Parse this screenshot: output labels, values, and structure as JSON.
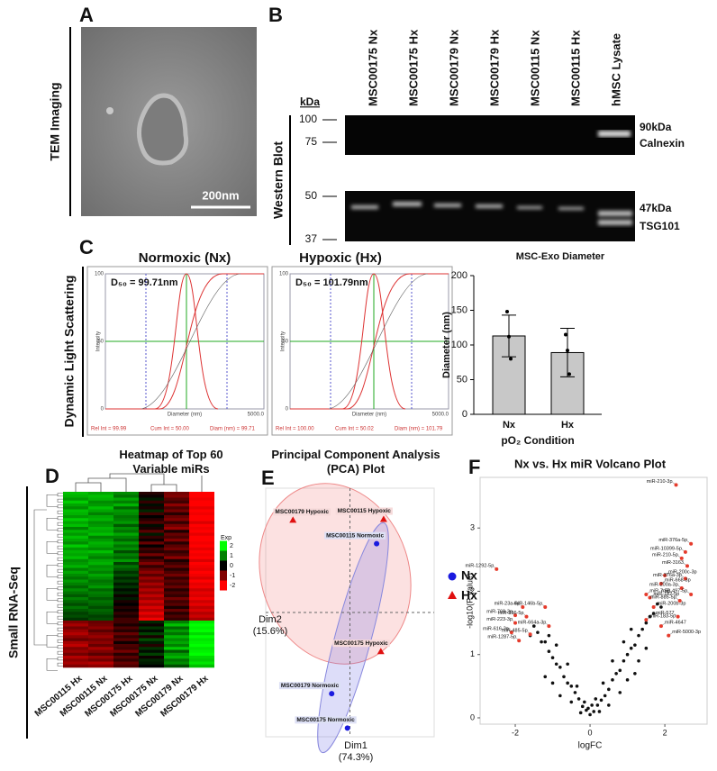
{
  "panel_labels": [
    "A",
    "B",
    "C",
    "D",
    "E",
    "F"
  ],
  "tem": {
    "side_label": "TEM Imaging",
    "scale_bar": "200nm"
  },
  "western": {
    "side_label": "Western Blot",
    "kda_label": "kDa",
    "lanes": [
      "MSC00175 Nx",
      "MSC00175 Hx",
      "MSC00179 Nx",
      "MSC00179 Hx",
      "MSC00115 Nx",
      "MSC00115 Hx",
      "hMSC Lysate"
    ],
    "markers_top": [
      100,
      75
    ],
    "markers_bottom": [
      50,
      37
    ],
    "right_top": [
      "90kDa",
      "Calnexin"
    ],
    "right_bottom": [
      "47kDa",
      "TSG101"
    ]
  },
  "dls": {
    "side_label": "Dynamic Light Scattering",
    "axis": {
      "yticks": [
        "100",
        "50",
        "0"
      ],
      "ylabel": "Intensity",
      "xlabel": "Diameter (nm)",
      "xmax": "5000.0"
    },
    "panels": [
      {
        "title": "Normoxic (Nx)",
        "d50": "D₅₀ = 99.71nm",
        "stats": [
          "Rel Int = 99.99",
          "Cum Int = 50.00",
          "Diam (nm) = 99.71"
        ]
      },
      {
        "title": "Hypoxic (Hx)",
        "d50": "D₅₀ = 101.79nm",
        "stats": [
          "Rel Int = 100.00",
          "Cum Int = 50.02",
          "Diam (nm) = 101.79"
        ]
      }
    ]
  },
  "rnaseq_side_label": "Small RNA-Seq",
  "chart_data": [
    {
      "type": "bar",
      "title": "MSC-Exo Diameter",
      "ylabel": "Diameter (nm)",
      "xlabel": "pO₂ Condition",
      "categories": [
        "Nx",
        "Hx"
      ],
      "values": [
        113,
        89
      ],
      "errors": [
        30,
        35
      ],
      "points": [
        [
          148,
          112,
          80
        ],
        [
          115,
          92,
          58
        ]
      ],
      "color": "#c8c8c8",
      "ylim": [
        0,
        200
      ],
      "yticks": [
        0,
        50,
        100,
        150,
        200
      ]
    },
    {
      "type": "heatmap",
      "title": "Heatmap of Top 60 Variable miRs",
      "legend_title": "Exp",
      "columns": [
        "MSC00115 Hx",
        "MSC00115 Nx",
        "MSC00175 Hx",
        "MSC00175 Nx",
        "MSC00179 Nx",
        "MSC00179 Hx"
      ],
      "zlim": [
        -2,
        2
      ],
      "zticks": [
        2,
        1,
        0,
        -1,
        -2
      ],
      "values": [
        [
          1.5,
          1.3,
          1.1,
          -0.3,
          -0.9,
          -2
        ],
        [
          1.4,
          1.5,
          0.9,
          -0.1,
          -1.0,
          -2
        ],
        [
          1.2,
          1.4,
          1.3,
          0.2,
          -0.7,
          -1.9
        ],
        [
          1.6,
          1.1,
          1.0,
          -0.4,
          -0.5,
          -2
        ],
        [
          1.3,
          1.2,
          1.4,
          0.1,
          -1.1,
          -2
        ],
        [
          1.1,
          1.5,
          0.8,
          -0.2,
          -0.6,
          -1.8
        ],
        [
          1.5,
          1.3,
          1.2,
          0.3,
          -0.9,
          -2
        ],
        [
          1.4,
          1.0,
          1.1,
          -0.5,
          -0.3,
          -1.9
        ],
        [
          1.2,
          1.3,
          0.9,
          0.0,
          -0.8,
          -2
        ],
        [
          1.6,
          1.4,
          1.0,
          -0.3,
          -1.0,
          -2
        ],
        [
          1.3,
          1.1,
          1.2,
          -0.6,
          -0.4,
          -1.7
        ],
        [
          1.5,
          1.2,
          0.7,
          0.1,
          -0.9,
          -2
        ],
        [
          1.0,
          1.4,
          1.1,
          -0.2,
          -1.2,
          -1.9
        ],
        [
          1.4,
          1.3,
          0.9,
          -0.7,
          -0.2,
          -2
        ],
        [
          1.2,
          1.5,
          1.3,
          0.2,
          -0.8,
          -1.8
        ],
        [
          1.5,
          1.0,
          1.0,
          -0.4,
          -0.6,
          -2
        ],
        [
          1.3,
          1.2,
          0.8,
          -0.1,
          -1.0,
          -2
        ],
        [
          1.1,
          1.4,
          1.2,
          -0.8,
          -0.3,
          -1.9
        ],
        [
          1.6,
          1.3,
          0.9,
          0.0,
          -0.7,
          -2
        ],
        [
          1.2,
          1.1,
          1.1,
          -0.5,
          -0.9,
          -1.8
        ],
        [
          1.4,
          1.5,
          0.6,
          -0.3,
          -0.4,
          -2
        ],
        [
          1.3,
          1.2,
          1.0,
          -0.9,
          -0.6,
          -1.9
        ],
        [
          1.5,
          1.0,
          0.8,
          -0.2,
          -1.1,
          -2
        ],
        [
          1.1,
          1.3,
          1.2,
          -0.6,
          -0.2,
          -1.7
        ],
        [
          1.2,
          1.4,
          0.5,
          -1.0,
          -0.5,
          -2
        ],
        [
          1.4,
          1.1,
          0.9,
          -0.4,
          -0.8,
          -1.9
        ],
        [
          1.0,
          1.2,
          0.7,
          -0.8,
          -0.3,
          -1.8
        ],
        [
          1.3,
          1.0,
          0.4,
          -1.1,
          -0.6,
          -2
        ],
        [
          1.1,
          1.3,
          0.6,
          -0.7,
          -0.9,
          -1.9
        ],
        [
          0.9,
          1.1,
          0.3,
          -1.2,
          -0.4,
          -1.7
        ],
        [
          1.2,
          0.9,
          0.5,
          -0.9,
          -0.7,
          -2
        ],
        [
          1.0,
          1.0,
          0.2,
          -1.3,
          -0.5,
          -1.8
        ],
        [
          0.8,
          1.2,
          0.4,
          -1.0,
          -0.8,
          -1.9
        ],
        [
          1.1,
          0.8,
          0.1,
          -1.4,
          -0.3,
          -1.6
        ],
        [
          0.9,
          1.0,
          0.3,
          -1.1,
          -0.6,
          -1.8
        ],
        [
          0.7,
          0.9,
          -0.1,
          -1.5,
          -0.4,
          -1.7
        ],
        [
          1.0,
          0.7,
          0.2,
          -1.2,
          -0.9,
          -1.9
        ],
        [
          0.8,
          0.9,
          -0.2,
          -1.6,
          -0.5,
          -1.6
        ],
        [
          0.6,
          0.8,
          0.0,
          -1.3,
          -0.7,
          -1.8
        ],
        [
          0.9,
          0.6,
          -0.3,
          -1.7,
          -0.2,
          -1.5
        ],
        [
          0.7,
          0.8,
          -0.1,
          -1.4,
          -0.8,
          -1.7
        ],
        [
          0.5,
          0.7,
          -0.4,
          -1.8,
          -0.3,
          -1.4
        ],
        [
          0.6,
          0.5,
          -0.2,
          -1.5,
          -0.6,
          -1.6
        ],
        [
          0.4,
          0.6,
          -0.5,
          -1.9,
          -0.4,
          -1.3
        ],
        [
          -1.0,
          -0.8,
          -0.5,
          0.3,
          1.0,
          1.8
        ],
        [
          -1.3,
          -0.9,
          -0.2,
          -0.1,
          1.5,
          2
        ],
        [
          -0.9,
          -1.1,
          -0.6,
          0.4,
          0.8,
          1.9
        ],
        [
          -1.2,
          -0.7,
          -0.3,
          0.1,
          1.2,
          2
        ],
        [
          -1.4,
          -1.0,
          -0.8,
          0.5,
          0.9,
          1.7
        ],
        [
          -1.1,
          -1.2,
          -0.4,
          -0.2,
          1.4,
          2
        ],
        [
          -0.8,
          -0.9,
          -0.7,
          0.6,
          1.1,
          1.8
        ],
        [
          -1.3,
          -1.1,
          -0.1,
          0.2,
          1.3,
          1.9
        ],
        [
          -1.5,
          -0.8,
          -0.6,
          -0.3,
          1.0,
          2
        ],
        [
          -1.0,
          -1.3,
          -0.5,
          0.4,
          1.6,
          1.8
        ],
        [
          -1.2,
          -1.0,
          -0.9,
          0.1,
          0.7,
          1.9
        ],
        [
          -0.9,
          -0.7,
          -0.3,
          0.5,
          1.2,
          2
        ],
        [
          -1.4,
          -1.2,
          -0.7,
          -0.1,
          1.4,
          1.7
        ],
        [
          -1.1,
          -0.9,
          -0.4,
          0.3,
          0.9,
          1.6
        ],
        [
          -1.3,
          -1.4,
          -0.8,
          0.2,
          1.1,
          1.8
        ],
        [
          -1.0,
          -1.1,
          -0.6,
          0.0,
          0.6,
          1.5
        ]
      ]
    },
    {
      "type": "scatter",
      "title": "Principal Component Analysis (PCA) Plot",
      "xlabel": "Dim1 (74.3%)",
      "ylabel": "Dim2 (15.6%)",
      "xlim": [
        -3,
        3
      ],
      "ylim": [
        -3,
        3
      ],
      "series": [
        {
          "name": "Nx",
          "color": "#1a1adf",
          "marker": "circle",
          "labels": [
            "MSC00115 Normoxic",
            "MSC00179 Normoxic",
            "MSC00175 Normoxic"
          ],
          "x": [
            0.95,
            -0.65,
            -0.09
          ],
          "y": [
            1.66,
            -1.96,
            -2.79
          ]
        },
        {
          "name": "Hx",
          "color": "#e01010",
          "marker": "triangle",
          "labels": [
            "MSC00115 Hypoxic",
            "MSC00179 Hypoxic",
            "MSC00175 Hypoxic"
          ],
          "x": [
            1.2,
            -2.03,
            1.1
          ],
          "y": [
            2.25,
            2.23,
            -0.94
          ]
        }
      ]
    },
    {
      "type": "volcano",
      "title": "Nx vs. Hx miR Volcano Plot",
      "xlabel": "logFC",
      "ylabel": "-log10(P Value)",
      "xlim": [
        -2.94,
        3.13
      ],
      "ylim": [
        -0.1,
        3.8
      ],
      "xticks": [
        -2,
        0,
        2
      ],
      "yticks": [
        0,
        1,
        2,
        3
      ],
      "x": [
        0,
        0.1,
        -0.1,
        0.2,
        -0.2,
        0.3,
        -0.3,
        0.4,
        -0.4,
        0.5,
        -0.5,
        0.6,
        -0.6,
        0.7,
        -0.7,
        0.8,
        -0.8,
        0.9,
        -0.9,
        1.0,
        -1.0,
        1.1,
        -1.1,
        1.2,
        -1.2,
        1.3,
        -1.3,
        1.4,
        -1.4,
        1.5,
        -1.5,
        1.6,
        1.7,
        1.8,
        1.9,
        0.25,
        -0.25,
        0.5,
        -0.5,
        0.8,
        -0.8,
        1.0,
        -1.0,
        1.2,
        -1.2,
        0.15,
        -0.15,
        0.35,
        -0.35,
        0.6,
        -0.6,
        0.9,
        -0.9,
        1.1,
        -1.1,
        0.05,
        -0.05,
        1.5,
        -1.6,
        1.3
      ],
      "y": [
        0.05,
        0.1,
        0.12,
        0.2,
        0.18,
        0.28,
        0.3,
        0.35,
        0.4,
        0.45,
        0.5,
        0.6,
        0.55,
        0.7,
        0.65,
        0.75,
        0.8,
        0.9,
        0.85,
        1.0,
        0.95,
        1.1,
        1.05,
        1.15,
        1.2,
        1.3,
        1.2,
        1.4,
        1.35,
        1.5,
        1.45,
        1.6,
        1.65,
        1.8,
        1.75,
        0.1,
        0.08,
        0.2,
        0.25,
        0.4,
        0.35,
        0.6,
        0.55,
        0.7,
        0.65,
        0.3,
        0.25,
        0.55,
        0.5,
        0.9,
        0.85,
        1.2,
        1.15,
        1.4,
        1.3,
        0.2,
        0.15,
        1.1,
        1.3,
        0.9
      ],
      "highlight_color": "#e53b2c",
      "labeled": [
        {
          "label": "miR-210-3p",
          "x": 2.3,
          "y": 3.68
        },
        {
          "label": "miR-1292-5p",
          "x": -2.5,
          "y": 2.35
        },
        {
          "label": "miR-376a-5p",
          "x": 2.7,
          "y": 2.75
        },
        {
          "label": "miR-10399-5p",
          "x": 2.55,
          "y": 2.62
        },
        {
          "label": "miR-210-5p",
          "x": 2.45,
          "y": 2.52
        },
        {
          "label": "miR-3163",
          "x": 2.6,
          "y": 2.4
        },
        {
          "label": "miR-200c-3p",
          "x": 2.0,
          "y": 2.25
        },
        {
          "label": "miR-376a-3p",
          "x": 2.55,
          "y": 2.2
        },
        {
          "label": "miR-668-3p",
          "x": 1.9,
          "y": 2.12
        },
        {
          "label": "miR-200a-3p",
          "x": 2.45,
          "y": 2.05
        },
        {
          "label": "miR-497-5p",
          "x": 2.7,
          "y": 1.95
        },
        {
          "label": "miR-7-5p",
          "x": 1.5,
          "y": 1.95
        },
        {
          "label": "miR-182-5p",
          "x": 1.6,
          "y": 1.9
        },
        {
          "label": "miR-146b-5p",
          "x": -1.2,
          "y": 1.75
        },
        {
          "label": "miR-23a-5p",
          "x": -1.8,
          "y": 1.75
        },
        {
          "label": "miR-769-3p",
          "x": -2.0,
          "y": 1.62
        },
        {
          "label": "miR-296-5p",
          "x": -1.7,
          "y": 1.6
        },
        {
          "label": "miR-223-3p",
          "x": -2.0,
          "y": 1.5
        },
        {
          "label": "miR-664a-3p",
          "x": -1.1,
          "y": 1.45
        },
        {
          "label": "miR-616-3p",
          "x": -2.1,
          "y": 1.35
        },
        {
          "label": "miR-485-5p",
          "x": -1.6,
          "y": 1.32
        },
        {
          "label": "miR-1287-5p",
          "x": -1.9,
          "y": 1.22
        },
        {
          "label": "miR-200b-3p",
          "x": 1.7,
          "y": 1.75
        },
        {
          "label": "miR-183-5p",
          "x": 1.5,
          "y": 1.55
        },
        {
          "label": "miR-4647",
          "x": 1.9,
          "y": 1.45
        },
        {
          "label": "miR-577",
          "x": 2.35,
          "y": 1.6
        },
        {
          "label": "miR-5000-3p",
          "x": 2.1,
          "y": 1.3
        },
        {
          "label": "miR-885-5p",
          "x": 2.4,
          "y": 1.85
        }
      ]
    }
  ]
}
